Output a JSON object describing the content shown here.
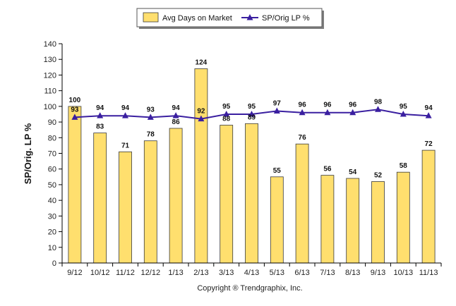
{
  "chart_data": {
    "type": "bar",
    "categories": [
      "9/12",
      "10/12",
      "11/12",
      "12/12",
      "1/13",
      "2/13",
      "3/13",
      "4/13",
      "5/13",
      "6/13",
      "7/13",
      "8/13",
      "9/13",
      "10/13",
      "11/13"
    ],
    "series": [
      {
        "name": "Avg Days on Market",
        "type": "bar",
        "color": "#FFDF6E",
        "values": [
          100,
          83,
          71,
          78,
          86,
          124,
          88,
          89,
          55,
          76,
          56,
          54,
          52,
          58,
          72
        ]
      },
      {
        "name": "SP/Orig LP %",
        "type": "line",
        "color": "#3A1FA0",
        "values": [
          93,
          94,
          94,
          93,
          94,
          92,
          95,
          95,
          97,
          96,
          96,
          96,
          98,
          95,
          94
        ]
      }
    ],
    "bar_labels": [
      "100",
      "83",
      "71",
      "78",
      "86",
      "124",
      "88",
      "89",
      "55",
      "76",
      "56",
      "54",
      "52",
      "58",
      "72"
    ],
    "line_labels": [
      "93",
      "94",
      "94",
      "93",
      "94",
      "92",
      "95",
      "95",
      "97",
      "96",
      "96",
      "96",
      "98",
      "95",
      "94"
    ],
    "ylabel": "SP/Orig. LP %",
    "ylim": [
      0,
      140
    ],
    "yticks": [
      0,
      10,
      20,
      30,
      40,
      50,
      60,
      70,
      80,
      90,
      100,
      110,
      120,
      130,
      140
    ],
    "grid": false,
    "legend_position": "top-center"
  },
  "footer": {
    "copyright": "Copyright ® Trendgraphix, Inc."
  }
}
